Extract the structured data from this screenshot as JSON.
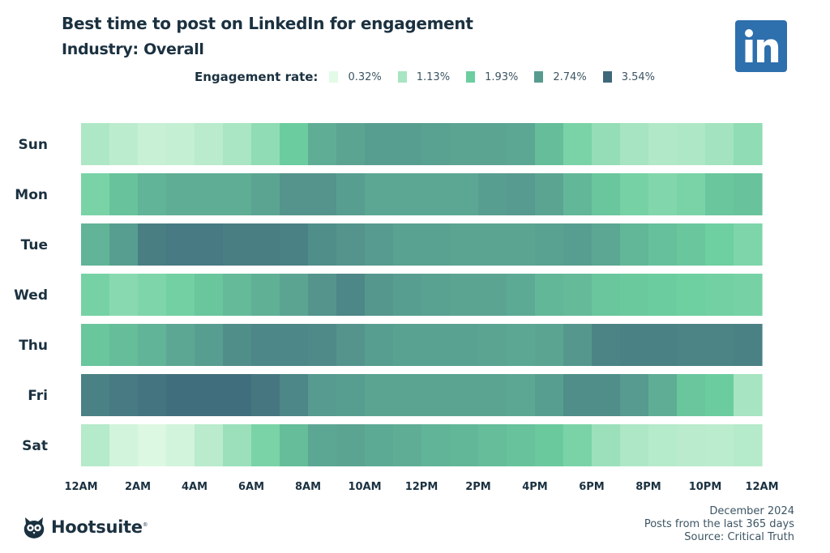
{
  "header": {
    "title": "Best time to post on LinkedIn for engagement",
    "subtitle": "Industry: Overall"
  },
  "legend": {
    "title": "Engagement rate:",
    "items": [
      {
        "label": "0.32%",
        "value": 0.32,
        "color": "#e3fae6"
      },
      {
        "label": "1.13%",
        "value": 1.13,
        "color": "#a8e5c2"
      },
      {
        "label": "1.93%",
        "value": 1.93,
        "color": "#6cce9f"
      },
      {
        "label": "2.74%",
        "value": 2.74,
        "color": "#579b8f"
      },
      {
        "label": "3.54%",
        "value": 3.54,
        "color": "#3e687a"
      }
    ]
  },
  "logo": {
    "icon": "linkedin-logo-icon",
    "text": "in",
    "color": "#2e6fad"
  },
  "chart_data": {
    "type": "heatmap",
    "title": "Best time to post on LinkedIn for engagement",
    "subtitle": "Industry: Overall",
    "xlabel": "",
    "ylabel": "",
    "value_label": "Engagement rate (%)",
    "value_range": [
      0.32,
      3.54
    ],
    "rows": [
      "Sun",
      "Mon",
      "Tue",
      "Wed",
      "Thu",
      "Fri",
      "Sat"
    ],
    "columns": [
      "12AM",
      "1AM",
      "2AM",
      "3AM",
      "4AM",
      "5AM",
      "6AM",
      "7AM",
      "8AM",
      "9AM",
      "10AM",
      "11AM",
      "12PM",
      "1PM",
      "2PM",
      "3PM",
      "4PM",
      "5PM",
      "6PM",
      "7PM",
      "8PM",
      "9PM",
      "10PM",
      "11PM"
    ],
    "x_tick_labels": [
      "12AM",
      "2AM",
      "4AM",
      "6AM",
      "8AM",
      "10AM",
      "12PM",
      "2PM",
      "4PM",
      "6PM",
      "8PM",
      "10PM",
      "12AM"
    ],
    "values": [
      [
        1.05,
        0.85,
        0.7,
        0.75,
        0.9,
        1.1,
        1.45,
        1.95,
        2.45,
        2.6,
        2.7,
        2.7,
        2.65,
        2.6,
        2.6,
        2.55,
        2.2,
        1.75,
        1.4,
        1.15,
        1.0,
        1.05,
        1.2,
        1.45
      ],
      [
        1.75,
        2.1,
        2.35,
        2.45,
        2.45,
        2.45,
        2.6,
        2.85,
        2.85,
        2.7,
        2.55,
        2.55,
        2.55,
        2.55,
        2.7,
        2.75,
        2.6,
        2.3,
        2.05,
        1.8,
        1.65,
        1.75,
        2.05,
        2.1
      ],
      [
        2.35,
        2.7,
        3.2,
        3.25,
        3.25,
        3.2,
        3.2,
        3.15,
        2.95,
        2.85,
        2.75,
        2.65,
        2.65,
        2.6,
        2.6,
        2.6,
        2.65,
        2.7,
        2.55,
        2.3,
        2.15,
        2.05,
        1.9,
        1.7
      ],
      [
        1.8,
        1.55,
        1.7,
        1.85,
        2.05,
        2.25,
        2.4,
        2.6,
        2.85,
        3.05,
        2.8,
        2.7,
        2.65,
        2.6,
        2.6,
        2.5,
        2.3,
        2.25,
        2.05,
        2.0,
        1.95,
        1.9,
        1.85,
        1.8
      ],
      [
        2.05,
        2.2,
        2.35,
        2.55,
        2.7,
        2.95,
        3.05,
        3.05,
        3.0,
        2.85,
        2.7,
        2.65,
        2.65,
        2.65,
        2.6,
        2.55,
        2.6,
        2.8,
        3.1,
        3.15,
        3.15,
        3.1,
        3.1,
        3.15
      ],
      [
        3.15,
        3.25,
        3.35,
        3.45,
        3.45,
        3.45,
        3.3,
        3.05,
        2.75,
        2.7,
        2.6,
        2.6,
        2.6,
        2.6,
        2.6,
        2.55,
        2.7,
        2.95,
        2.95,
        2.75,
        2.45,
        2.05,
        1.95,
        1.15
      ],
      [
        0.95,
        0.55,
        0.4,
        0.55,
        0.9,
        1.3,
        1.75,
        2.2,
        2.55,
        2.6,
        2.5,
        2.45,
        2.35,
        2.3,
        2.2,
        2.1,
        2.0,
        1.75,
        1.3,
        1.05,
        0.95,
        0.9,
        0.85,
        0.95
      ]
    ],
    "legend": [
      "0.32%",
      "1.13%",
      "1.93%",
      "2.74%",
      "3.54%"
    ],
    "legend_placement": "top",
    "grid": false
  },
  "footer": {
    "brand": "Hootsuite",
    "brand_icon": "owl-logo-icon",
    "lines": [
      "December 2024",
      "Posts from the last 365 days",
      "Source: Critical Truth"
    ]
  }
}
